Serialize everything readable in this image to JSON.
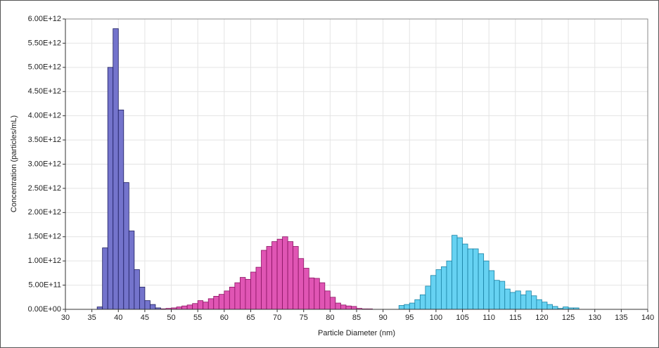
{
  "chart_data": {
    "type": "histogram",
    "xlabel": "Particle Diameter (nm)",
    "ylabel": "Concentration (particles/mL)",
    "xlim": [
      30,
      140
    ],
    "xticks": [
      30,
      35,
      40,
      45,
      50,
      55,
      60,
      65,
      70,
      75,
      80,
      85,
      90,
      95,
      100,
      105,
      110,
      115,
      120,
      125,
      130,
      135,
      140
    ],
    "ylim": [
      0,
      6000000000000
    ],
    "yticks": [
      {
        "value": 0,
        "label": "0.00E+00"
      },
      {
        "value": 500000000000,
        "label": "5.00E+11"
      },
      {
        "value": 1000000000000,
        "label": "1.00E+12"
      },
      {
        "value": 1500000000000,
        "label": "1.50E+12"
      },
      {
        "value": 2000000000000,
        "label": "2.00E+12"
      },
      {
        "value": 2500000000000,
        "label": "2.50E+12"
      },
      {
        "value": 3000000000000,
        "label": "3.00E+12"
      },
      {
        "value": 3500000000000,
        "label": "3.50E+12"
      },
      {
        "value": 4000000000000,
        "label": "4.00E+12"
      },
      {
        "value": 4500000000000,
        "label": "4.50E+12"
      },
      {
        "value": 5000000000000,
        "label": "5.00E+12"
      },
      {
        "value": 5500000000000,
        "label": "5.50E+12"
      },
      {
        "value": 6000000000000,
        "label": "6.00E+12"
      }
    ],
    "grid": true,
    "series": [
      {
        "color": "#7474cc",
        "edge": "#1c1c5e",
        "bins": [
          36,
          37,
          38,
          39,
          40,
          41,
          42,
          43,
          44,
          45,
          46,
          47,
          48,
          49
        ],
        "values": [
          50000000000,
          1270000000000,
          5000000000000,
          5800000000000,
          4120000000000,
          2620000000000,
          1620000000000,
          820000000000,
          460000000000,
          180000000000,
          100000000000,
          30000000000,
          10000000000
        ]
      },
      {
        "color": "#e055b4",
        "edge": "#8a1462",
        "bins": [
          48,
          49,
          50,
          51,
          52,
          53,
          54,
          55,
          56,
          57,
          58,
          59,
          60,
          61,
          62,
          63,
          64,
          65,
          66,
          67,
          68,
          69,
          70,
          71,
          72,
          73,
          74,
          75,
          76,
          77,
          78,
          79,
          80,
          81,
          82,
          83,
          84,
          85,
          86,
          87,
          88
        ],
        "values": [
          10000000000,
          20000000000,
          30000000000,
          50000000000,
          70000000000,
          90000000000,
          120000000000,
          180000000000,
          150000000000,
          220000000000,
          270000000000,
          310000000000,
          380000000000,
          460000000000,
          550000000000,
          660000000000,
          620000000000,
          770000000000,
          870000000000,
          1220000000000,
          1300000000000,
          1400000000000,
          1450000000000,
          1500000000000,
          1400000000000,
          1300000000000,
          1050000000000,
          850000000000,
          650000000000,
          640000000000,
          550000000000,
          380000000000,
          250000000000,
          130000000000,
          90000000000,
          70000000000,
          60000000000,
          20000000000,
          10000000000,
          10000000000
        ]
      },
      {
        "color": "#66d2f2",
        "edge": "#1a82a4",
        "bins": [
          93,
          94,
          95,
          96,
          97,
          98,
          99,
          100,
          101,
          102,
          103,
          104,
          105,
          106,
          107,
          108,
          109,
          110,
          111,
          112,
          113,
          114,
          115,
          116,
          117,
          118,
          119,
          120,
          121,
          122,
          123,
          124,
          125,
          126,
          127
        ],
        "values": [
          80000000000,
          100000000000,
          130000000000,
          200000000000,
          300000000000,
          480000000000,
          700000000000,
          820000000000,
          880000000000,
          1000000000000,
          1530000000000,
          1480000000000,
          1350000000000,
          1250000000000,
          1250000000000,
          1150000000000,
          1000000000000,
          800000000000,
          600000000000,
          580000000000,
          420000000000,
          350000000000,
          380000000000,
          300000000000,
          380000000000,
          280000000000,
          200000000000,
          150000000000,
          100000000000,
          60000000000,
          20000000000,
          50000000000,
          30000000000,
          30000000000
        ]
      }
    ]
  }
}
